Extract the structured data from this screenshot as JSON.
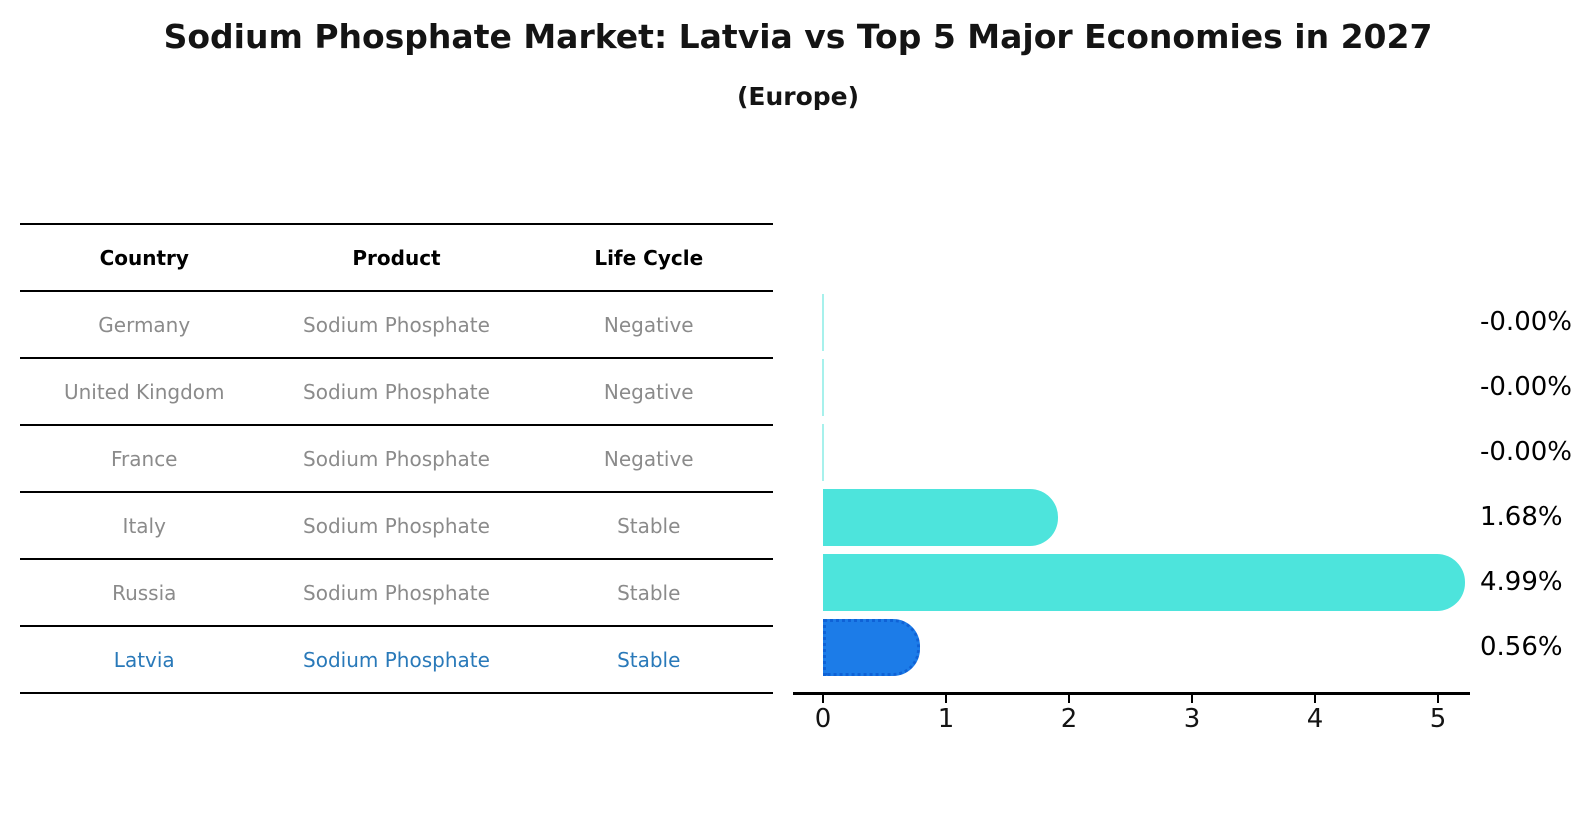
{
  "title": "Sodium Phosphate Market: Latvia vs Top 5 Major Economies in 2027",
  "subtitle": "(Europe)",
  "table": {
    "columns": [
      "Country",
      "Product",
      "Life Cycle"
    ],
    "rows": [
      {
        "country": "Germany",
        "product": "Sodium Phosphate",
        "life_cycle": "Negative",
        "highlight": false
      },
      {
        "country": "United Kingdom",
        "product": "Sodium Phosphate",
        "life_cycle": "Negative",
        "highlight": false
      },
      {
        "country": "France",
        "product": "Sodium Phosphate",
        "life_cycle": "Negative",
        "highlight": false
      },
      {
        "country": "Italy",
        "product": "Sodium Phosphate",
        "life_cycle": "Stable",
        "highlight": false
      },
      {
        "country": "Russia",
        "product": "Sodium Phosphate",
        "life_cycle": "Stable",
        "highlight": false
      },
      {
        "country": "Latvia",
        "product": "Sodium Phosphate",
        "life_cycle": "Stable",
        "highlight": true
      }
    ]
  },
  "chart_data": {
    "type": "bar",
    "orientation": "horizontal",
    "title": "Sodium Phosphate Market: Latvia vs Top 5 Major Economies in 2027",
    "subtitle": "(Europe)",
    "categories": [
      "Germany",
      "United Kingdom",
      "France",
      "Italy",
      "Russia",
      "Latvia"
    ],
    "values": [
      0,
      0,
      0,
      1.68,
      4.99,
      0.56
    ],
    "value_labels": [
      "-0.00%",
      "-0.00%",
      "-0.00%",
      "1.68%",
      "4.99%",
      "0.56%"
    ],
    "x_ticks": [
      "0",
      "1",
      "2",
      "3",
      "4",
      "5"
    ],
    "xlim": [
      0,
      5
    ],
    "grid": false,
    "legend": false,
    "highlight_index": 5,
    "highlight_style": "dotted-border"
  },
  "colors": {
    "bar_default": "#4de4dc",
    "bar_zero_line": "#8aece6",
    "bar_highlight": "#1c7ce8",
    "bar_highlight_border": "#0f62d6",
    "table_text": "#8b8b8b",
    "highlight_text": "#2979b9",
    "axis": "#000000"
  }
}
